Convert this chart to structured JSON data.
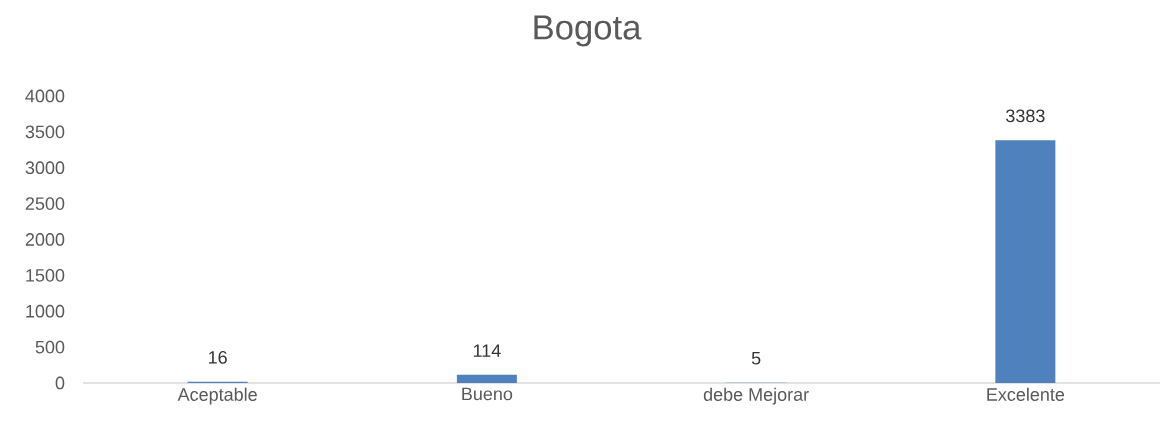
{
  "chart_data": {
    "type": "bar",
    "title": "Bogota",
    "categories": [
      "Aceptable",
      "Bueno",
      "debe Mejorar",
      "Excelente"
    ],
    "values": [
      16,
      114,
      5,
      3383
    ],
    "color": "#4f81bd",
    "ylim": [
      0,
      4000
    ],
    "yticks": [
      0,
      500,
      1000,
      1500,
      2000,
      2500,
      3000,
      3500,
      4000
    ],
    "data_labels": true
  }
}
